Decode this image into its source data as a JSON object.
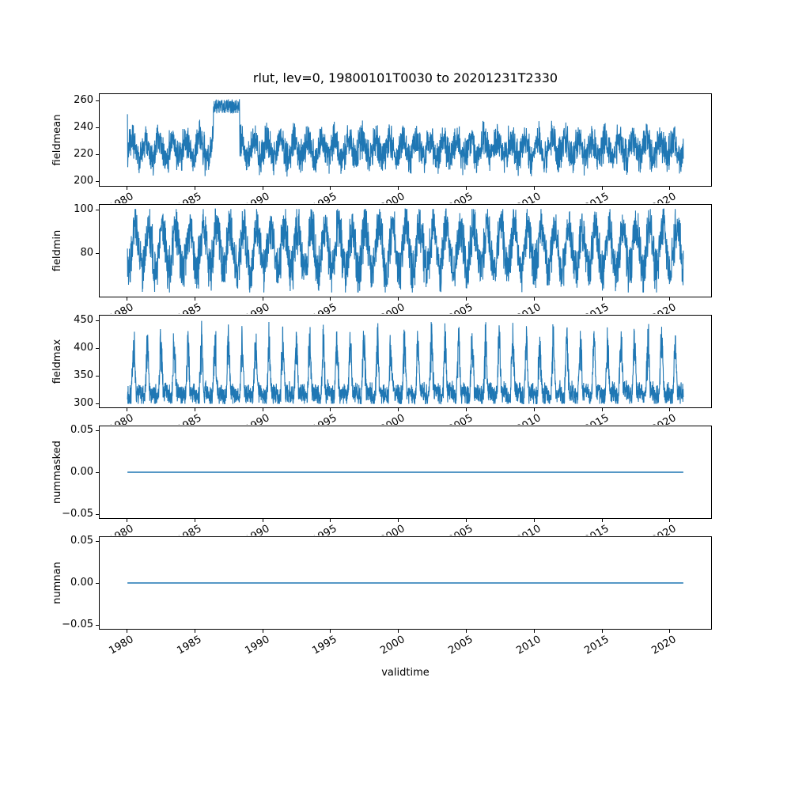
{
  "figure": {
    "title": "rlut, lev=0, 19800101T0030 to 20201231T2330",
    "xlabel": "validtime",
    "background_color": "#ffffff",
    "line_color": "#1f77b4",
    "text_color": "#000000",
    "grid": false,
    "legend": "none",
    "xlim": [
      1977.95,
      2023.13
    ],
    "x_tick_values": [
      1980,
      1985,
      1990,
      1995,
      2000,
      2005,
      2010,
      2015,
      2020
    ],
    "x_tick_labels": [
      "1980",
      "1985",
      "1990",
      "1995",
      "2000",
      "2005",
      "2010",
      "2015",
      "2020"
    ],
    "x_tick_rotation_deg": 30
  },
  "chart_data": [
    {
      "type": "line",
      "name": "fieldmean",
      "ylabel": "fieldmean",
      "x_start": 1980.0,
      "x_end": 2021.08,
      "ylim": [
        195.8,
        265.2
      ],
      "ytick_values": [
        200,
        220,
        240,
        260
      ],
      "ytick_labels": [
        "200",
        "220",
        "240",
        "260"
      ],
      "summary": "High-frequency noisy series oscillating roughly 205-248 around a mean near 225 with a weak annual cycle; an elevated plateau of about 250-262 from mid-1986 to early 1988; brief spike near 250 at the very start of 1980.",
      "gen": {
        "kind": "noisy",
        "n": 3000,
        "base": 224,
        "seasonal": 7,
        "phase": 0.1,
        "noise": 11,
        "clip": [
          199.5,
          248.5
        ],
        "start_spike": 250,
        "anomaly": {
          "x0": 1986.35,
          "x1": 1988.3,
          "base": 256,
          "noise": 5.5,
          "clip": [
            249.5,
            262
          ]
        }
      }
    },
    {
      "type": "line",
      "name": "fieldmin",
      "ylabel": "fieldmin",
      "x_start": 1980.0,
      "x_end": 2021.08,
      "ylim": [
        60.1,
        102.4
      ],
      "ytick_values": [
        80,
        100
      ],
      "ytick_labels": [
        "80",
        "100"
      ],
      "summary": "Dense oscillating series spanning about 62-100 with a strong annual cycle around a mean near 82; yearly peaks approach 100 and troughs reach the low 60s throughout 1980-2021.",
      "gen": {
        "kind": "noisy",
        "n": 3000,
        "base": 82,
        "seasonal": 10,
        "phase": 0.35,
        "noise": 9,
        "clip": [
          62,
          100.5
        ]
      }
    },
    {
      "type": "line",
      "name": "fieldmax",
      "ylabel": "fieldmax",
      "x_start": 1980.0,
      "x_end": 2021.08,
      "ylim": [
        291.4,
        459.6
      ],
      "ytick_values": [
        300,
        350,
        400,
        450
      ],
      "ytick_labels": [
        "300",
        "350",
        "400",
        "450"
      ],
      "summary": "Dense band between roughly 300 and 350 with sharp annual peaks rising to about 400-455 every year from 1980 to 2021.",
      "gen": {
        "kind": "noisy",
        "n": 3200,
        "base": 313,
        "seasonal": 6,
        "phase": 0.6,
        "noise": 17,
        "clip": [
          298,
          456
        ],
        "peak": {
          "phase": 0.22,
          "pow": 3,
          "amp": 105
        }
      }
    },
    {
      "type": "line",
      "name": "nummasked",
      "ylabel": "nummasked",
      "x_start": 1980.0,
      "x_end": 2021.08,
      "ylim": [
        -0.0555,
        0.0555
      ],
      "ytick_values": [
        0.05,
        0.0,
        -0.05
      ],
      "ytick_labels": [
        "0.05",
        "0.00",
        "−0.05"
      ],
      "summary": "Constant value 0 for the whole period 1980-2021 (flat horizontal line).",
      "gen": {
        "kind": "flat",
        "value": 0
      }
    },
    {
      "type": "line",
      "name": "numnan",
      "ylabel": "numnan",
      "x_start": 1980.0,
      "x_end": 2021.08,
      "ylim": [
        -0.0555,
        0.0555
      ],
      "ytick_values": [
        0.05,
        0.0,
        -0.05
      ],
      "ytick_labels": [
        "0.05",
        "0.00",
        "−0.05"
      ],
      "summary": "Constant value 0 for the whole period 1980-2021 (flat horizontal line).",
      "gen": {
        "kind": "flat",
        "value": 0
      }
    }
  ]
}
